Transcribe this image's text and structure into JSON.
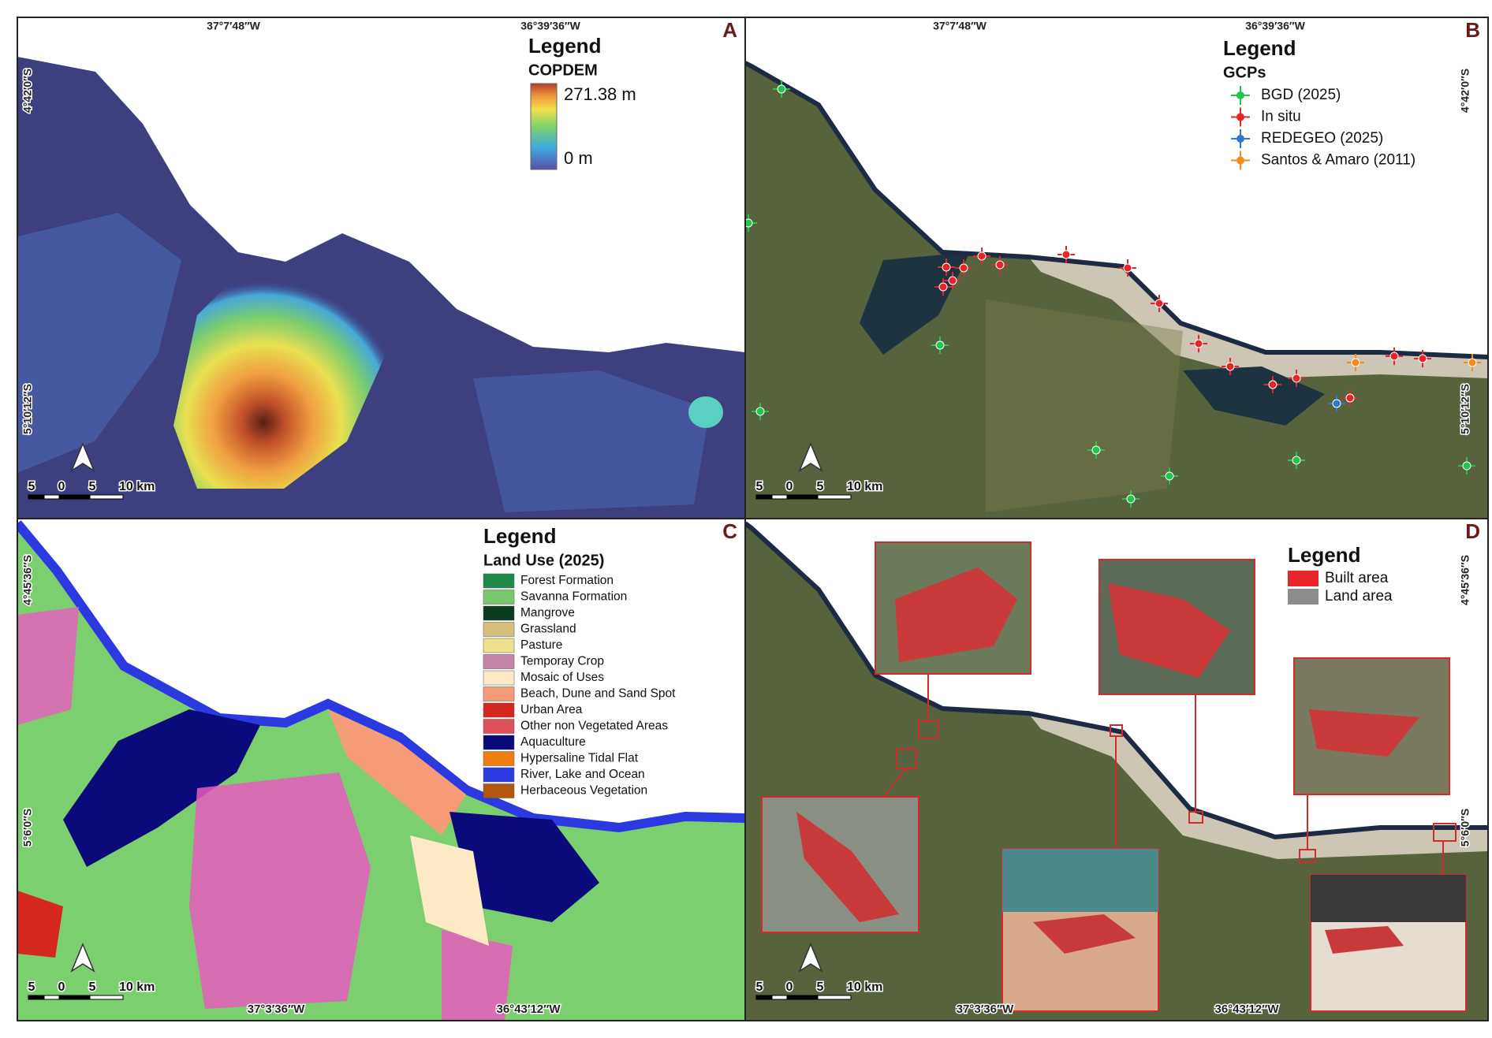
{
  "panels": [
    {
      "label": "A",
      "top_coords": [
        "37°7′48″W",
        "36°39′36″W"
      ],
      "side_coords": [
        "4°42′0″S",
        "5°10′12″S"
      ],
      "legend": {
        "title": "Legend",
        "subtitle": "COPDEM",
        "max": "271.38 m",
        "min": "0 m"
      },
      "scale": [
        "5",
        "0",
        "5",
        "10 km"
      ]
    },
    {
      "label": "B",
      "top_coords": [
        "37°7′48″W",
        "36°39′36″W"
      ],
      "side_coords": [
        "4°42′0″S",
        "5°10′12″S"
      ],
      "legend": {
        "title": "Legend",
        "subtitle": "GCPs",
        "items": [
          {
            "name": "BGD (2025)",
            "color": "#22c44a"
          },
          {
            "name": "In situ",
            "color": "#e4262a"
          },
          {
            "name": "REDEGEO (2025)",
            "color": "#2f78c4"
          },
          {
            "name": "Santos & Amaro (2011)",
            "color": "#f28a1c"
          }
        ]
      },
      "scale": [
        "5",
        "0",
        "5",
        "10 km"
      ]
    },
    {
      "label": "C",
      "side_coords": [
        "4°45′36″S",
        "5°6′0″S"
      ],
      "bottom_coords": [
        "37°3′36″W",
        "36°43′12″W"
      ],
      "legend": {
        "title": "Legend",
        "subtitle": "Land Use (2025)",
        "items": [
          {
            "name": "Forest Formation",
            "color": "#1f8a4c"
          },
          {
            "name": "Savanna Formation",
            "color": "#79c86e"
          },
          {
            "name": "Mangrove",
            "color": "#0b3b1e"
          },
          {
            "name": "Grassland",
            "color": "#d6bf7a"
          },
          {
            "name": "Pasture",
            "color": "#efe08f"
          },
          {
            "name": "Temporay Crop",
            "color": "#c584a8"
          },
          {
            "name": "Mosaic of Uses",
            "color": "#fde9c4"
          },
          {
            "name": "Beach, Dune and Sand Spot",
            "color": "#f59b78"
          },
          {
            "name": "Urban Area",
            "color": "#d4271f"
          },
          {
            "name": "Other non Vegetated Areas",
            "color": "#e0505a"
          },
          {
            "name": "Aquaculture",
            "color": "#0a0a7a"
          },
          {
            "name": "Hypersaline Tidal Flat",
            "color": "#f07d10"
          },
          {
            "name": "River, Lake and Ocean",
            "color": "#2a3ae0"
          },
          {
            "name": "Herbaceous Vegetation",
            "color": "#b3560e"
          }
        ]
      },
      "scale": [
        "5",
        "0",
        "5",
        "10 km"
      ]
    },
    {
      "label": "D",
      "side_coords": [
        "4°45′36″S",
        "5°6′0″S"
      ],
      "bottom_coords": [
        "37°3′36″W",
        "36°43′12″W"
      ],
      "legend": {
        "title": "Legend",
        "items": [
          {
            "name": "Built area",
            "color": "#e8252a"
          },
          {
            "name": "Land area",
            "color": "#8c8c8c"
          }
        ]
      },
      "scale": [
        "5",
        "0",
        "5",
        "10 km"
      ]
    }
  ]
}
